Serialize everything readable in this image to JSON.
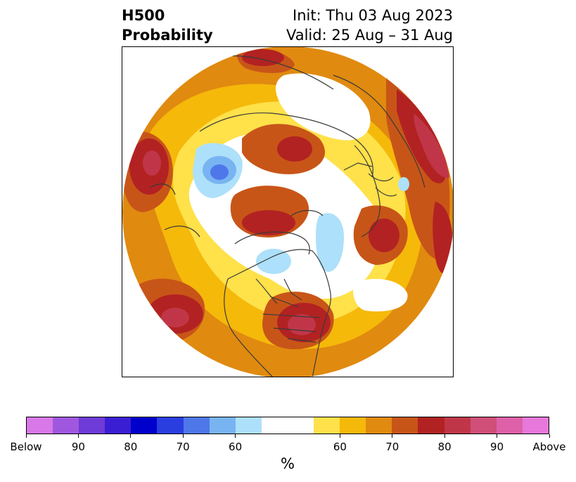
{
  "title": {
    "left_line1": "H500",
    "left_line2": "Probability",
    "right_line1": "Init: Thu 03 Aug 2023",
    "right_line2": "Valid: 25 Aug – 31 Aug"
  },
  "colorbar": {
    "unit": "%",
    "colors": [
      "#d978e8",
      "#a057e0",
      "#6e3ad8",
      "#3a1ed4",
      "#0000cc",
      "#2a3ee0",
      "#4e77ea",
      "#78b4f2",
      "#ade0fa",
      "#ffffff",
      "#ffffff",
      "#ffe14a",
      "#f5b90a",
      "#e08a10",
      "#c85518",
      "#b22222",
      "#c03648",
      "#cf4f78",
      "#de60a8",
      "#e878dc"
    ],
    "labels": [
      "Below",
      "90",
      "80",
      "70",
      "60",
      "60",
      "70",
      "80",
      "90",
      "Above"
    ]
  },
  "colors": {
    "low_band": "#ffe14a",
    "mid_band": "#f5b90a",
    "orange": "#e08a10",
    "dark_orange": "#c85518",
    "red": "#b22222",
    "crimson": "#c03648",
    "pink": "#cf4f78",
    "light_blue": "#ade0fa",
    "mid_blue": "#78b4f2",
    "blue": "#4e77ea"
  }
}
